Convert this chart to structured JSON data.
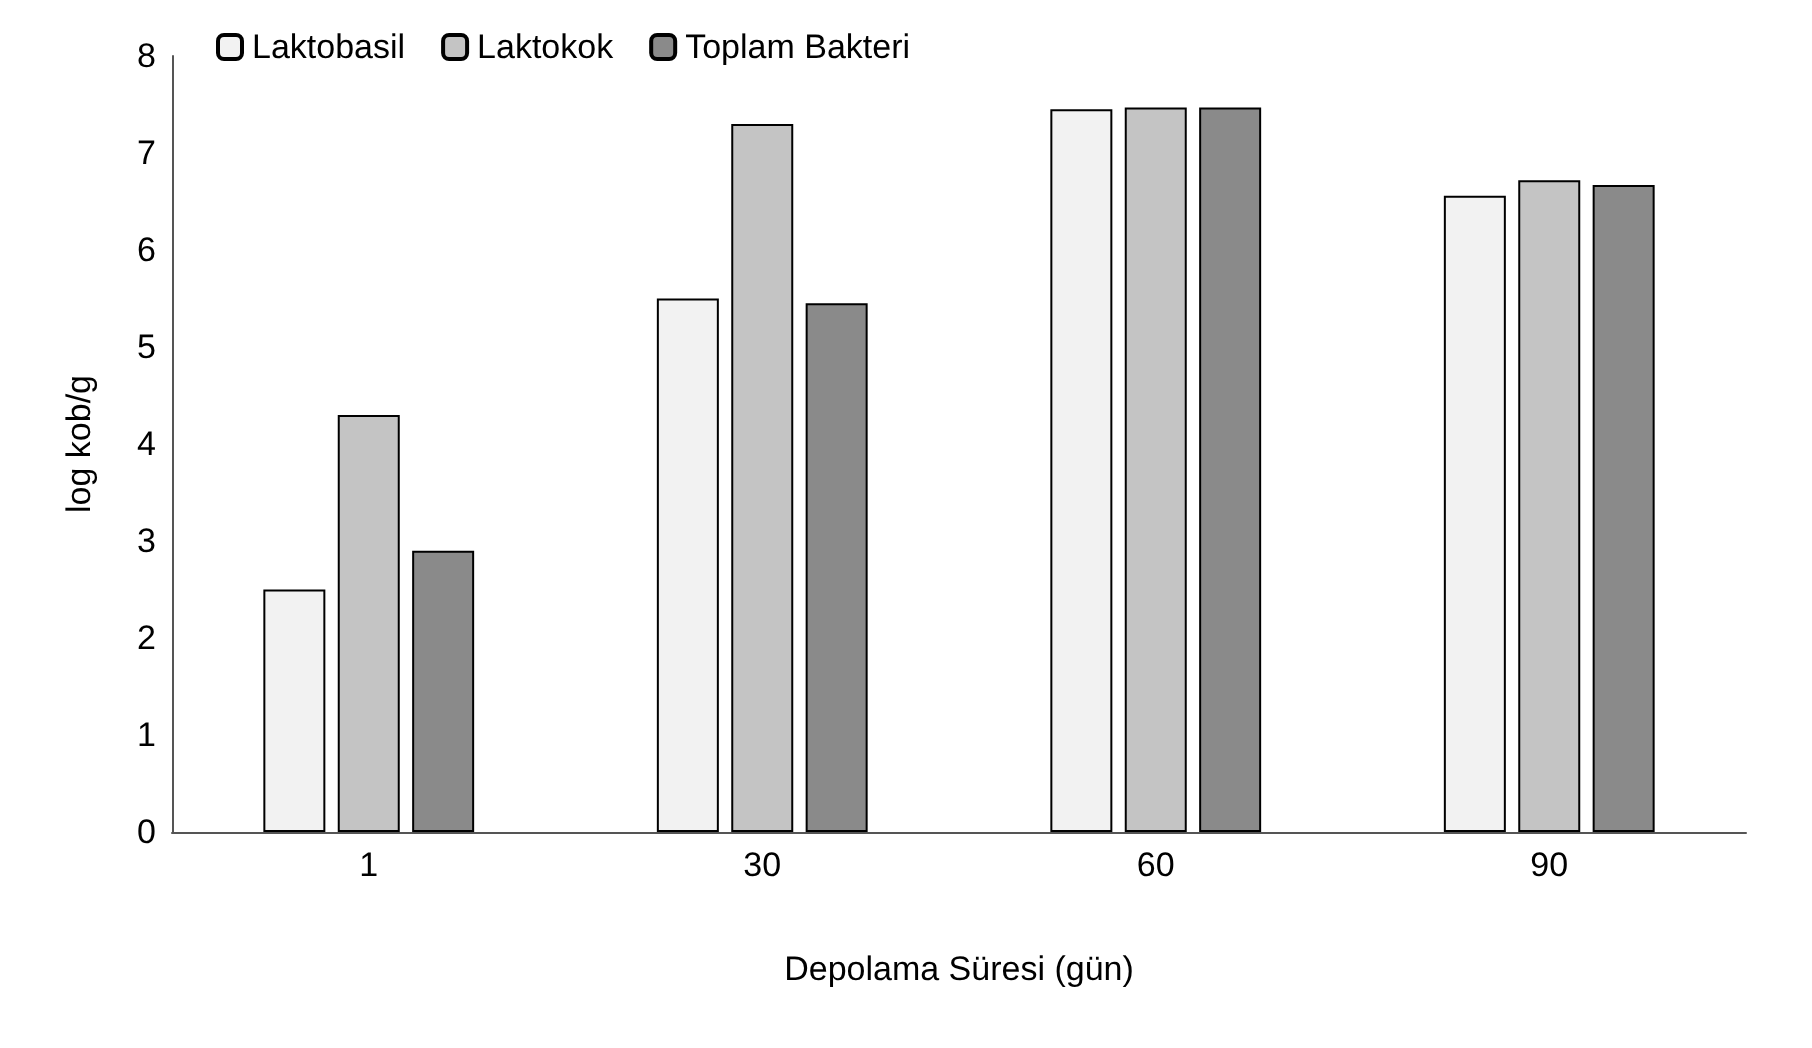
{
  "chart_data": {
    "type": "bar",
    "xlabel": "Depolama Süresi (gün)",
    "ylabel": "log kob/g",
    "categories": [
      "1",
      "30",
      "60",
      "90"
    ],
    "series": [
      {
        "name": "Laktobasil",
        "color": "#f2f2f2",
        "values": [
          2.5,
          5.5,
          7.45,
          6.56
        ]
      },
      {
        "name": "Laktokok",
        "color": "#c4c4c4",
        "values": [
          4.3,
          7.3,
          7.47,
          6.72
        ]
      },
      {
        "name": "Toplam Bakteri",
        "color": "#8a8a8a",
        "values": [
          2.9,
          5.45,
          7.47,
          6.67
        ]
      }
    ],
    "ylim": [
      0,
      8
    ],
    "yticks": [
      0,
      1,
      2,
      3,
      4,
      5,
      6,
      7,
      8
    ],
    "grid": false,
    "legend": "top left"
  }
}
